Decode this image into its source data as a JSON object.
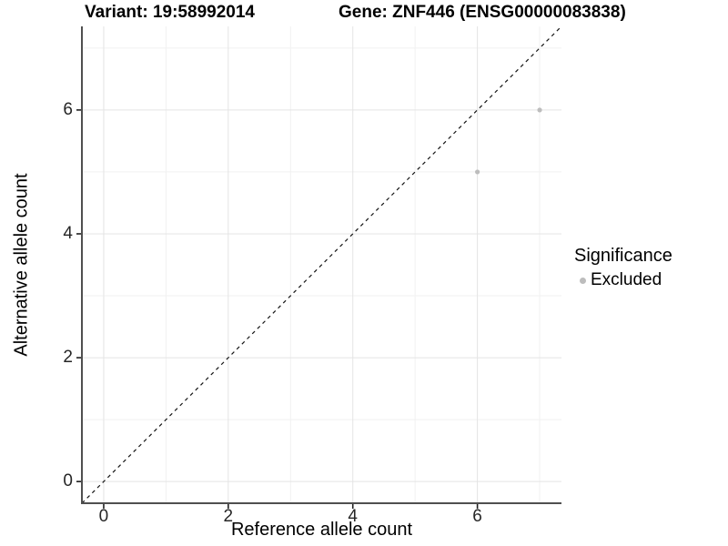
{
  "chart_data": {
    "type": "scatter",
    "titles": {
      "variant": "Variant: 19:58992014",
      "gene": "Gene: ZNF446 (ENSG00000083838)"
    },
    "xlabel": "Reference allele count",
    "ylabel": "Alternative allele count",
    "xlim": [
      -0.35,
      7.35
    ],
    "ylim": [
      -0.35,
      7.35
    ],
    "xticks": [
      0,
      2,
      4,
      6
    ],
    "yticks": [
      0,
      2,
      4,
      6
    ],
    "minor_gridlines": [
      1,
      3,
      5,
      7
    ],
    "grid": true,
    "points": [
      {
        "x": 6,
        "y": 5,
        "significance": "Excluded"
      },
      {
        "x": 7,
        "y": 6,
        "significance": "Excluded"
      }
    ],
    "reference_line": {
      "type": "identity",
      "style": "dashed"
    },
    "legend": {
      "title": "Significance",
      "position": "right",
      "items": [
        {
          "label": "Excluded",
          "color": "#bdbdbd"
        }
      ]
    },
    "colors": {
      "point_excluded": "#bdbdbd",
      "grid_major": "#e4e4e4",
      "grid_minor": "#f1f1f1",
      "axis_line": "#4f4f4f",
      "tick_mark": "#1f1f1f",
      "reference_line": "#141414",
      "background": "#ffffff"
    }
  }
}
